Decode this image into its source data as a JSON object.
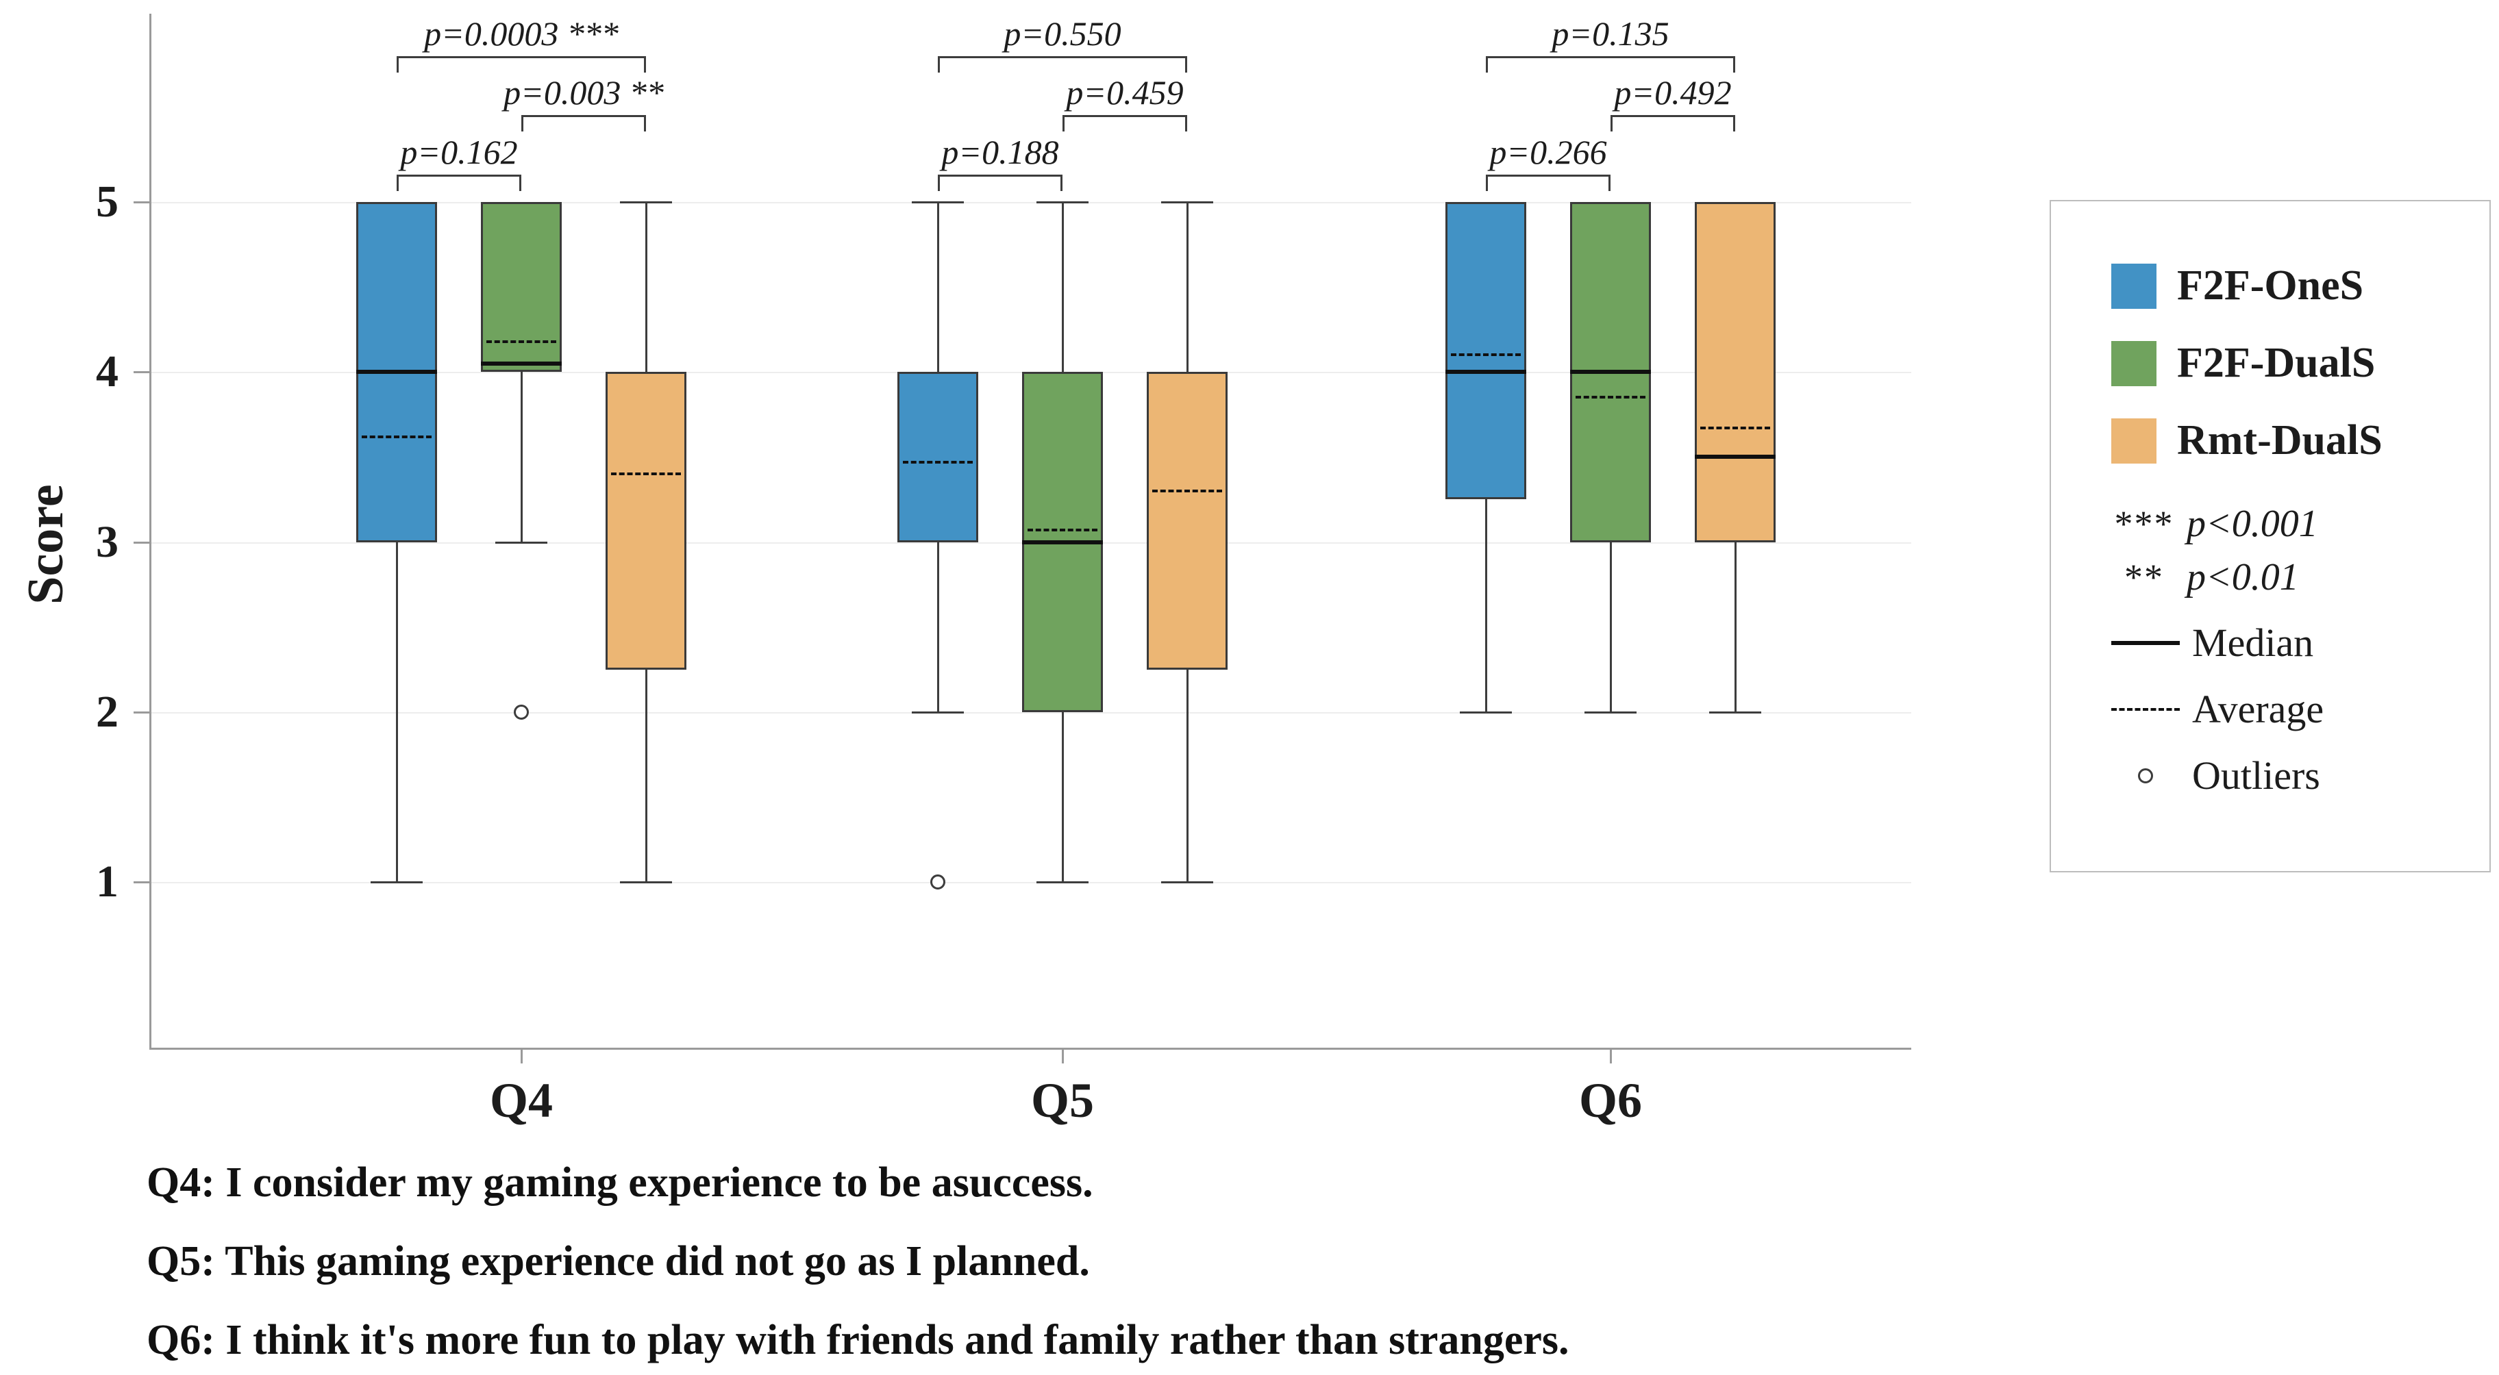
{
  "chart_data": {
    "type": "boxplot",
    "title": "",
    "ylabel": "Score",
    "yticks": [
      1,
      2,
      3,
      4,
      5
    ],
    "ylim": [
      0,
      6.1
    ],
    "grid": true,
    "legend_position": "right",
    "categories": [
      "Q4",
      "Q5",
      "Q6"
    ],
    "series": [
      {
        "name": "F2F-OneS",
        "color": "#4292c5",
        "boxes": [
          {
            "q1": 3,
            "q3": 5,
            "median": 4,
            "mean": 3.62,
            "whisker_low": 1,
            "whisker_high": 5,
            "outliers": []
          },
          {
            "q1": 3,
            "q3": 4,
            "median": 4,
            "mean": 3.47,
            "whisker_low": 2,
            "whisker_high": 5,
            "outliers": [
              1
            ]
          },
          {
            "q1": 3.25,
            "q3": 5,
            "median": 4,
            "mean": 4.1,
            "whisker_low": 2,
            "whisker_high": 5,
            "outliers": []
          }
        ]
      },
      {
        "name": "F2F-DualS",
        "color": "#70a35e",
        "boxes": [
          {
            "q1": 4,
            "q3": 5,
            "median": 4.05,
            "mean": 4.18,
            "whisker_low": 3,
            "whisker_high": 5,
            "outliers": [
              2
            ]
          },
          {
            "q1": 2,
            "q3": 4,
            "median": 3,
            "mean": 3.07,
            "whisker_low": 1,
            "whisker_high": 5,
            "outliers": []
          },
          {
            "q1": 3,
            "q3": 5,
            "median": 4,
            "mean": 3.85,
            "whisker_low": 2,
            "whisker_high": 5,
            "outliers": []
          }
        ]
      },
      {
        "name": "Rmt-DualS",
        "color": "#ecb674",
        "boxes": [
          {
            "q1": 2.25,
            "q3": 4,
            "median": 4,
            "mean": 3.4,
            "whisker_low": 1,
            "whisker_high": 5,
            "outliers": []
          },
          {
            "q1": 2.25,
            "q3": 4,
            "median": 4,
            "mean": 3.3,
            "whisker_low": 1,
            "whisker_high": 5,
            "outliers": []
          },
          {
            "q1": 3,
            "q3": 5,
            "median": 3.5,
            "mean": 3.67,
            "whisker_low": 2,
            "whisker_high": 5,
            "outliers": []
          }
        ]
      }
    ],
    "significance": [
      {
        "group": "Q4",
        "pairs": [
          {
            "a": 0,
            "b": 1,
            "level": 0,
            "label": "p=0.162"
          },
          {
            "a": 1,
            "b": 2,
            "level": 1,
            "label": "p=0.003 **"
          },
          {
            "a": 0,
            "b": 2,
            "level": 2,
            "label": "p=0.0003 ***"
          }
        ]
      },
      {
        "group": "Q5",
        "pairs": [
          {
            "a": 0,
            "b": 1,
            "level": 0,
            "label": "p=0.188"
          },
          {
            "a": 1,
            "b": 2,
            "level": 1,
            "label": "p=0.459"
          },
          {
            "a": 0,
            "b": 2,
            "level": 2,
            "label": "p=0.550"
          }
        ]
      },
      {
        "group": "Q6",
        "pairs": [
          {
            "a": 0,
            "b": 1,
            "level": 0,
            "label": "p=0.266"
          },
          {
            "a": 1,
            "b": 2,
            "level": 1,
            "label": "p=0.492"
          },
          {
            "a": 0,
            "b": 2,
            "level": 2,
            "label": "p=0.135"
          }
        ]
      }
    ]
  },
  "legend": {
    "sig": [
      {
        "symbol": "***",
        "meaning": "p<0.001"
      },
      {
        "symbol": "**",
        "meaning": "p<0.01"
      }
    ],
    "median_label": "Median",
    "average_label": "Average",
    "outliers_label": "Outliers"
  },
  "footnotes": [
    "Q4: I consider my gaming experience to be asuccess.",
    "Q5: This gaming experience did not go as I planned.",
    "Q6: I think it's more fun to play with friends and family rather than strangers."
  ]
}
